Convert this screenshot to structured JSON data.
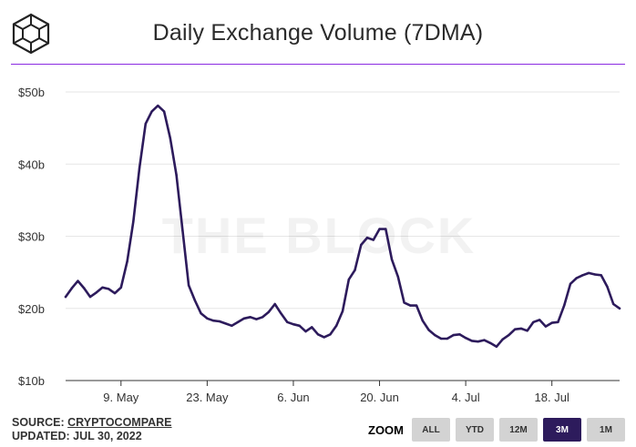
{
  "title": "Daily Exchange Volume (7DMA)",
  "watermark": "THE BLOCK",
  "source": {
    "label": "SOURCE:",
    "name": "CRYPTOCOMPARE"
  },
  "updated": "UPDATED: JUL 30, 2022",
  "zoom": {
    "label": "ZOOM",
    "buttons": [
      "ALL",
      "YTD",
      "12M",
      "3M",
      "1M"
    ],
    "active": "3M"
  },
  "colors": {
    "line": "#2d1b5c",
    "divider": "#8a2be2",
    "active_button": "#2d1b5c"
  },
  "chart_data": {
    "type": "line",
    "title": "Daily Exchange Volume (7DMA)",
    "xlabel": "",
    "ylabel": "",
    "ylim": [
      10,
      50
    ],
    "y_ticks": [
      10,
      20,
      30,
      40,
      50
    ],
    "y_tick_labels": [
      "$10b",
      "$20b",
      "$30b",
      "$40b",
      "$50b"
    ],
    "x_tick_labels": [
      "9. May",
      "23. May",
      "6. Jun",
      "20. Jun",
      "4. Jul",
      "18. Jul"
    ],
    "x_tick_dates": [
      "2022-05-09",
      "2022-05-23",
      "2022-06-06",
      "2022-06-20",
      "2022-07-04",
      "2022-07-18"
    ],
    "grid": "horizontal",
    "series": [
      {
        "unit": "$b",
        "x": [
          "2022-04-30",
          "2022-05-01",
          "2022-05-02",
          "2022-05-03",
          "2022-05-04",
          "2022-05-05",
          "2022-05-06",
          "2022-05-07",
          "2022-05-08",
          "2022-05-09",
          "2022-05-10",
          "2022-05-11",
          "2022-05-12",
          "2022-05-13",
          "2022-05-14",
          "2022-05-15",
          "2022-05-16",
          "2022-05-17",
          "2022-05-18",
          "2022-05-19",
          "2022-05-20",
          "2022-05-21",
          "2022-05-22",
          "2022-05-23",
          "2022-05-24",
          "2022-05-25",
          "2022-05-26",
          "2022-05-27",
          "2022-05-28",
          "2022-05-29",
          "2022-05-30",
          "2022-05-31",
          "2022-06-01",
          "2022-06-02",
          "2022-06-03",
          "2022-06-04",
          "2022-06-05",
          "2022-06-06",
          "2022-06-07",
          "2022-06-08",
          "2022-06-09",
          "2022-06-10",
          "2022-06-11",
          "2022-06-12",
          "2022-06-13",
          "2022-06-14",
          "2022-06-15",
          "2022-06-16",
          "2022-06-17",
          "2022-06-18",
          "2022-06-19",
          "2022-06-20",
          "2022-06-21",
          "2022-06-22",
          "2022-06-23",
          "2022-06-24",
          "2022-06-25",
          "2022-06-26",
          "2022-06-27",
          "2022-06-28",
          "2022-06-29",
          "2022-06-30",
          "2022-07-01",
          "2022-07-02",
          "2022-07-03",
          "2022-07-04",
          "2022-07-05",
          "2022-07-06",
          "2022-07-07",
          "2022-07-08",
          "2022-07-09",
          "2022-07-10",
          "2022-07-11",
          "2022-07-12",
          "2022-07-13",
          "2022-07-14",
          "2022-07-15",
          "2022-07-16",
          "2022-07-17",
          "2022-07-18",
          "2022-07-19",
          "2022-07-20",
          "2022-07-21",
          "2022-07-22",
          "2022-07-23",
          "2022-07-24",
          "2022-07-25",
          "2022-07-26",
          "2022-07-27",
          "2022-07-28",
          "2022-07-29"
        ],
        "values": [
          21.6,
          22.8,
          23.8,
          22.8,
          21.6,
          22.2,
          22.9,
          22.7,
          22.1,
          22.9,
          26.5,
          32.0,
          39.5,
          45.6,
          47.3,
          48.1,
          47.3,
          43.6,
          38.5,
          30.8,
          23.2,
          21.1,
          19.3,
          18.6,
          18.3,
          18.2,
          17.9,
          17.6,
          18.1,
          18.6,
          18.8,
          18.5,
          18.8,
          19.5,
          20.6,
          19.3,
          18.1,
          17.8,
          17.6,
          16.8,
          17.4,
          16.4,
          16.0,
          16.4,
          17.6,
          19.6,
          24.0,
          25.3,
          28.8,
          29.8,
          29.5,
          31.0,
          31.0,
          26.8,
          24.4,
          20.8,
          20.4,
          20.4,
          18.3,
          17.0,
          16.3,
          15.8,
          15.8,
          16.3,
          16.4,
          15.9,
          15.5,
          15.4,
          15.6,
          15.2,
          14.7,
          15.7,
          16.3,
          17.1,
          17.2,
          16.9,
          18.1,
          18.4,
          17.5,
          18.0,
          18.1,
          20.4,
          23.4,
          24.2,
          24.6,
          24.9,
          24.7,
          24.6,
          23.0,
          20.6,
          20.0
        ]
      }
    ]
  }
}
